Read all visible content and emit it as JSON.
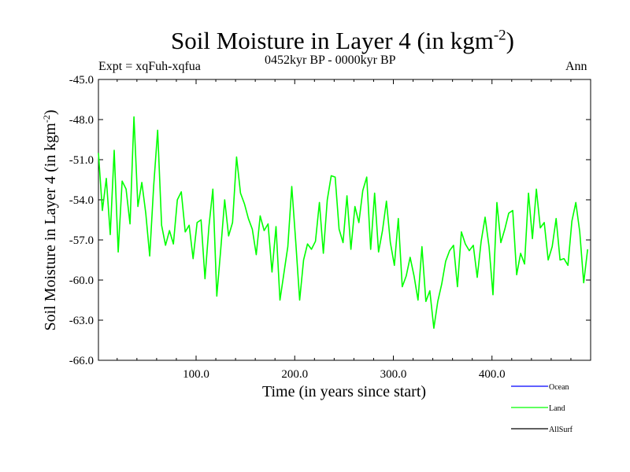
{
  "chart_data": {
    "type": "line",
    "title": "Soil Moisture in Layer 4 (in kgm",
    "title_sup": "-2",
    "title_close": ")",
    "experiment": "Expt = xqFuh-xqfua",
    "period": "0452kyr BP - 0000kyr BP",
    "season": "Ann",
    "xlabel": "Time (in years since start)",
    "ylabel": "Soil Moisture in Layer 4 (in kgm",
    "ylabel_sup": "-2",
    "ylabel_close": ")",
    "xlim": [
      1,
      500
    ],
    "ylim": [
      -66,
      -45
    ],
    "x_ticks": [
      100,
      200,
      300,
      400
    ],
    "x_tick_labels": [
      "100.0",
      "200.0",
      "300.0",
      "400.0"
    ],
    "y_ticks": [
      -45,
      -48,
      -51,
      -54,
      -57,
      -60,
      -63,
      -66
    ],
    "y_tick_labels": [
      "-45.0",
      "-48.0",
      "-51.0",
      "-54.0",
      "-57.0",
      "-60.0",
      "-63.0",
      "-66.0"
    ],
    "legend": [
      {
        "name": "Ocean",
        "color": "#0000ff"
      },
      {
        "name": "Land",
        "color": "#00ff00"
      },
      {
        "name": "AllSurf",
        "color": "#000000"
      }
    ],
    "series": [
      {
        "name": "Land",
        "color": "#00ff00",
        "x_start": 1,
        "x_step": 4,
        "values": [
          -50.5,
          -54.8,
          -52.4,
          -56.6,
          -50.3,
          -57.9,
          -52.6,
          -53.2,
          -55.8,
          -47.8,
          -54.5,
          -52.7,
          -55.0,
          -58.2,
          -53.0,
          -48.8,
          -55.9,
          -57.4,
          -56.3,
          -57.3,
          -54.0,
          -53.4,
          -56.4,
          -55.9,
          -58.4,
          -55.7,
          -55.5,
          -59.9,
          -56.0,
          -53.2,
          -61.2,
          -57.7,
          -54.0,
          -56.7,
          -55.7,
          -50.8,
          -53.5,
          -54.3,
          -55.4,
          -56.2,
          -58.1,
          -55.2,
          -56.3,
          -55.8,
          -59.4,
          -56.0,
          -61.5,
          -59.5,
          -57.5,
          -53.0,
          -57.1,
          -61.5,
          -58.5,
          -57.3,
          -57.7,
          -57.1,
          -54.2,
          -58.0,
          -54.0,
          -52.2,
          -52.3,
          -56.2,
          -57.2,
          -53.7,
          -57.7,
          -54.5,
          -55.7,
          -53.3,
          -52.3,
          -57.7,
          -53.5,
          -57.9,
          -56.3,
          -54.1,
          -57.2,
          -58.9,
          -55.4,
          -60.5,
          -59.7,
          -58.3,
          -59.7,
          -61.5,
          -57.5,
          -61.6,
          -60.8,
          -63.6,
          -61.6,
          -60.3,
          -58.6,
          -57.8,
          -57.4,
          -60.5,
          -56.4,
          -57.3,
          -57.8,
          -57.4,
          -59.8,
          -57.1,
          -55.3,
          -57.5,
          -61.1,
          -54.2,
          -57.2,
          -56.2,
          -55.0,
          -54.8,
          -59.6,
          -58.0,
          -58.8,
          -53.5,
          -56.9,
          -53.2,
          -56.1,
          -55.7,
          -58.5,
          -57.5,
          -55.4,
          -58.5,
          -58.4,
          -58.9,
          -55.6,
          -54.2,
          -56.4,
          -60.2,
          -57.7
        ],
        "x_start_comment": "",
        "values_note": ""
      }
    ]
  }
}
